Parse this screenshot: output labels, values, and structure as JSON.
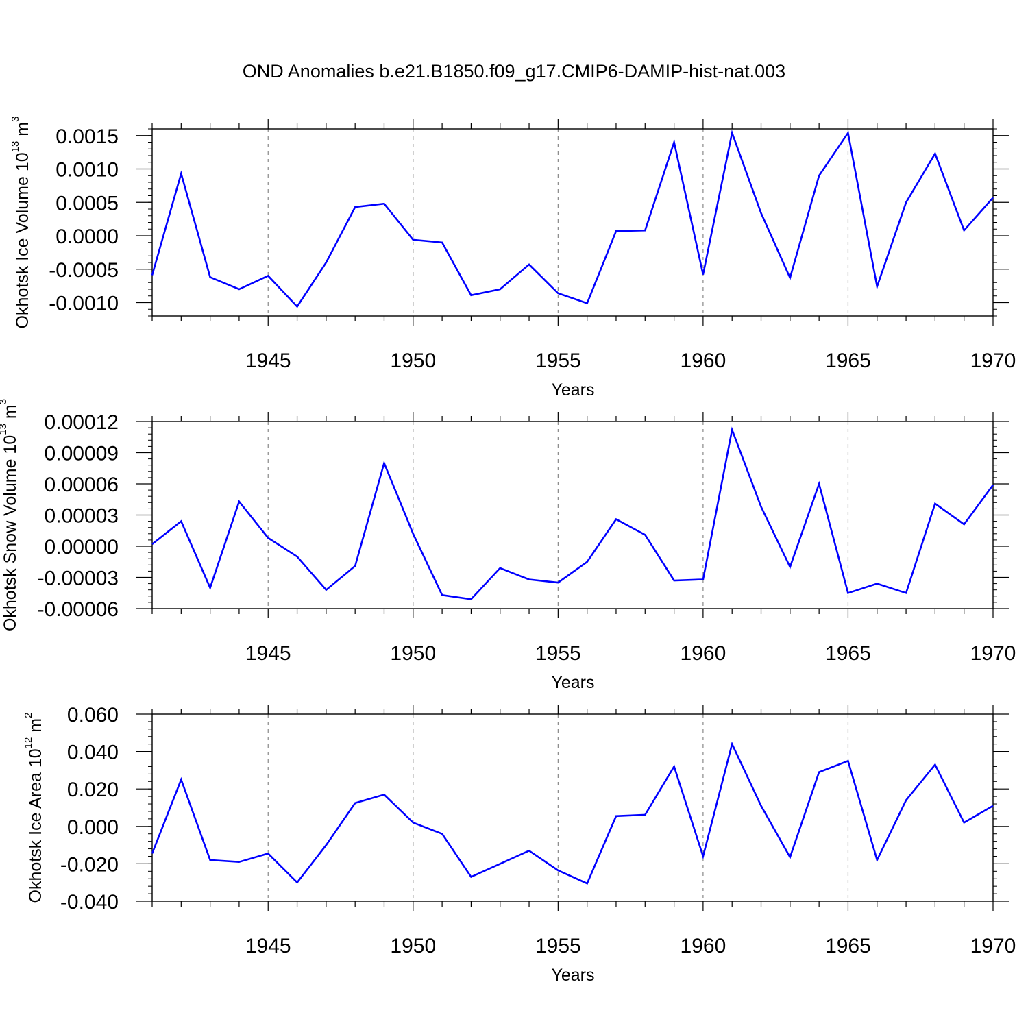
{
  "figure": {
    "title": "OND Anomalies b.e21.B1850.f09_g17.CMIP6-DAMIP-hist-nat.003"
  },
  "chart_data": [
    {
      "type": "line",
      "xlabel": "Years",
      "ylabel": {
        "main": "Okhotsk Ice Volume 10",
        "exponent": "13",
        "unit": "m",
        "unit_exponent": "3"
      },
      "xlim": [
        1941,
        1970
      ],
      "ylim": [
        -0.0012,
        0.0016
      ],
      "xticks": [
        1945,
        1950,
        1955,
        1960,
        1965,
        1970
      ],
      "yticks": [
        -0.001,
        -0.0005,
        0.0,
        0.0005,
        0.001,
        0.0015
      ],
      "ytick_labels": [
        "-0.0010",
        "-0.0005",
        "0.0000",
        "0.0005",
        "0.0010",
        "0.0015"
      ],
      "grid": "dashed vertical lines at major x ticks",
      "line_color": "#0000ff",
      "x": [
        1941,
        1942,
        1943,
        1944,
        1945,
        1946,
        1947,
        1948,
        1949,
        1950,
        1951,
        1952,
        1953,
        1954,
        1955,
        1956,
        1957,
        1958,
        1959,
        1960,
        1961,
        1962,
        1963,
        1964,
        1965,
        1966,
        1967,
        1968,
        1969,
        1970
      ],
      "values": [
        -0.00059,
        0.00093,
        -0.00062,
        -0.0008,
        -0.0006,
        -0.00106,
        -0.0004,
        0.00043,
        0.00048,
        -6e-05,
        -0.0001,
        -0.00089,
        -0.0008,
        -0.00043,
        -0.00086,
        -0.00101,
        7e-05,
        8e-05,
        0.0014,
        -0.00058,
        0.00154,
        0.00034,
        -0.00063,
        0.0009,
        0.00154,
        -0.00076,
        0.0005,
        0.00123,
        8e-05,
        0.00057
      ]
    },
    {
      "type": "line",
      "xlabel": "Years",
      "ylabel": {
        "main": "Okhotsk Snow Volume 10",
        "exponent": "13",
        "unit": "m",
        "unit_exponent": "3"
      },
      "xlim": [
        1941,
        1970
      ],
      "ylim": [
        -6e-05,
        0.00012
      ],
      "xticks": [
        1945,
        1950,
        1955,
        1960,
        1965,
        1970
      ],
      "yticks": [
        -6e-05,
        -3e-05,
        0.0,
        3e-05,
        6e-05,
        9e-05,
        0.00012
      ],
      "ytick_labels": [
        "-0.00006",
        "-0.00003",
        "0.00000",
        "0.00003",
        "0.00006",
        "0.00009",
        "0.00012"
      ],
      "grid": "dashed vertical lines at major x ticks",
      "line_color": "#0000ff",
      "x": [
        1941,
        1942,
        1943,
        1944,
        1945,
        1946,
        1947,
        1948,
        1949,
        1950,
        1951,
        1952,
        1953,
        1954,
        1955,
        1956,
        1957,
        1958,
        1959,
        1960,
        1961,
        1962,
        1963,
        1964,
        1965,
        1966,
        1967,
        1968,
        1969,
        1970
      ],
      "values": [
        2e-06,
        2.4e-05,
        -4e-05,
        4.3e-05,
        8e-06,
        -1e-05,
        -4.2e-05,
        -1.9e-05,
        8e-05,
        1.2e-05,
        -4.7e-05,
        -5.1e-05,
        -2.1e-05,
        -3.2e-05,
        -3.5e-05,
        -1.5e-05,
        2.6e-05,
        1.1e-05,
        -3.3e-05,
        -3.2e-05,
        0.000112,
        3.8e-05,
        -2e-05,
        6e-05,
        -4.5e-05,
        -3.6e-05,
        -4.5e-05,
        4.1e-05,
        2.1e-05,
        5.9e-05
      ]
    },
    {
      "type": "line",
      "xlabel": "Years",
      "ylabel": {
        "main": "Okhotsk Ice Area 10",
        "exponent": "12",
        "unit": "m",
        "unit_exponent": "2"
      },
      "xlim": [
        1941,
        1970
      ],
      "ylim": [
        -0.04,
        0.06
      ],
      "xticks": [
        1945,
        1950,
        1955,
        1960,
        1965,
        1970
      ],
      "yticks": [
        -0.04,
        -0.02,
        0.0,
        0.02,
        0.04,
        0.06
      ],
      "ytick_labels": [
        "-0.040",
        "-0.020",
        "0.000",
        "0.020",
        "0.040",
        "0.060"
      ],
      "grid": "dashed vertical lines at major x ticks",
      "line_color": "#0000ff",
      "x": [
        1941,
        1942,
        1943,
        1944,
        1945,
        1946,
        1947,
        1948,
        1949,
        1950,
        1951,
        1952,
        1953,
        1954,
        1955,
        1956,
        1957,
        1958,
        1959,
        1960,
        1961,
        1962,
        1963,
        1964,
        1965,
        1966,
        1967,
        1968,
        1969,
        1970
      ],
      "values": [
        -0.0145,
        0.025,
        -0.018,
        -0.019,
        -0.0145,
        -0.03,
        -0.01,
        0.0125,
        0.017,
        0.002,
        -0.004,
        -0.027,
        -0.02,
        -0.013,
        -0.0235,
        -0.0305,
        0.0055,
        0.0062,
        0.032,
        -0.016,
        0.044,
        0.011,
        -0.0165,
        0.029,
        0.035,
        -0.018,
        0.014,
        0.033,
        0.002,
        0.011
      ]
    }
  ]
}
